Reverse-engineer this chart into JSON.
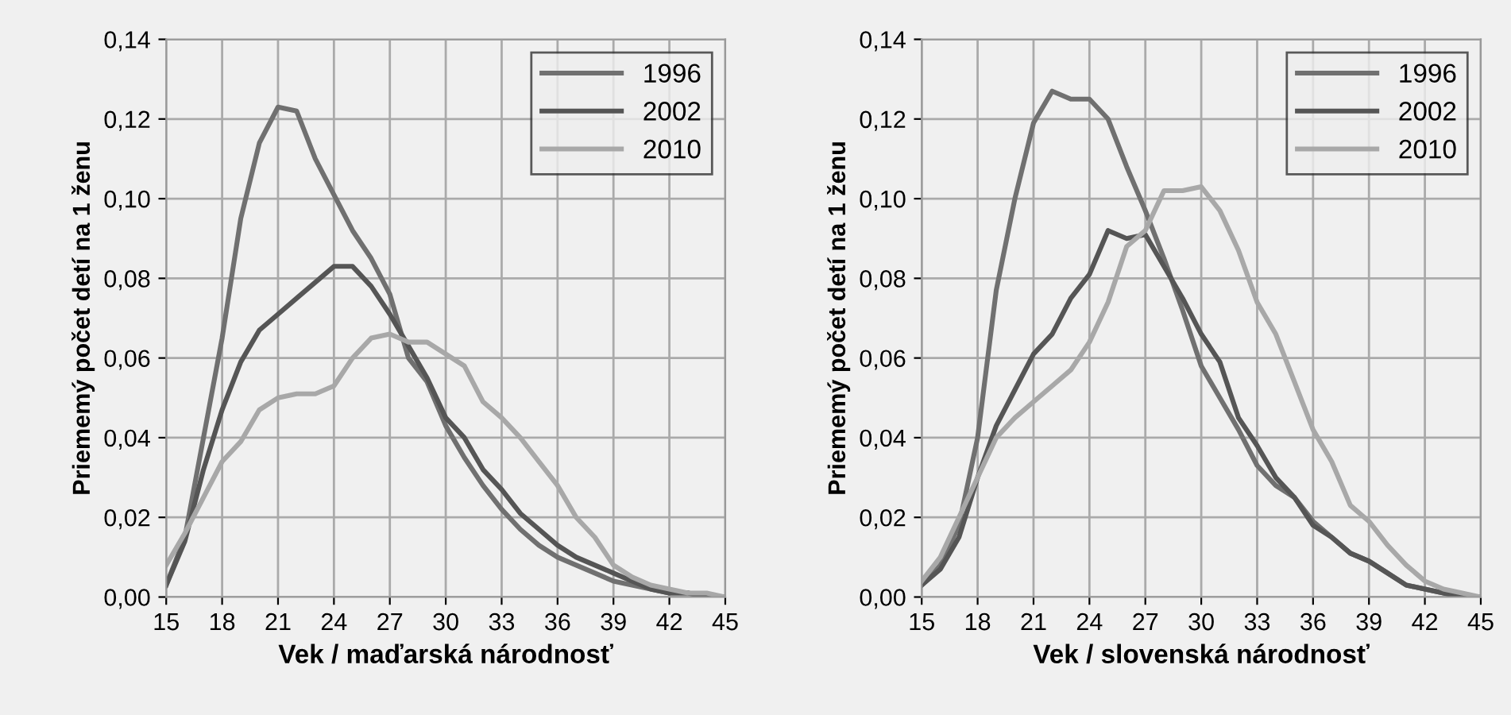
{
  "chart_data": [
    {
      "type": "line",
      "xlabel": "Vek / maďarská národnosť",
      "ylabel": "Priememý počet detí na 1 ženu",
      "x": [
        15,
        16,
        17,
        18,
        19,
        20,
        21,
        22,
        23,
        24,
        25,
        26,
        27,
        28,
        29,
        30,
        31,
        32,
        33,
        34,
        35,
        36,
        37,
        38,
        39,
        40,
        41,
        42,
        43,
        44,
        45
      ],
      "series": [
        {
          "name": "1996",
          "color": "#707070",
          "values": [
            0.003,
            0.015,
            0.04,
            0.065,
            0.095,
            0.114,
            0.123,
            0.122,
            0.11,
            0.101,
            0.092,
            0.085,
            0.076,
            0.06,
            0.054,
            0.043,
            0.035,
            0.028,
            0.022,
            0.017,
            0.013,
            0.01,
            0.008,
            0.006,
            0.004,
            0.003,
            0.002,
            0.001,
            0.001,
            0.0,
            0.0
          ]
        },
        {
          "name": "2002",
          "color": "#555555",
          "values": [
            0.003,
            0.014,
            0.032,
            0.047,
            0.059,
            0.067,
            0.071,
            0.075,
            0.079,
            0.083,
            0.083,
            0.078,
            0.071,
            0.063,
            0.055,
            0.045,
            0.04,
            0.032,
            0.027,
            0.021,
            0.017,
            0.013,
            0.01,
            0.008,
            0.006,
            0.004,
            0.002,
            0.001,
            0.001,
            0.0,
            0.0
          ]
        },
        {
          "name": "2010",
          "color": "#a8a8a8",
          "values": [
            0.008,
            0.016,
            0.025,
            0.034,
            0.039,
            0.047,
            0.05,
            0.051,
            0.051,
            0.053,
            0.06,
            0.065,
            0.066,
            0.064,
            0.064,
            0.061,
            0.058,
            0.049,
            0.045,
            0.04,
            0.034,
            0.028,
            0.02,
            0.015,
            0.008,
            0.005,
            0.003,
            0.002,
            0.001,
            0.001,
            0.0
          ]
        }
      ],
      "xlim": [
        15,
        45
      ],
      "xticks": [
        15,
        18,
        21,
        24,
        27,
        30,
        33,
        36,
        39,
        42,
        45
      ],
      "ylim": [
        0,
        0.14
      ],
      "yticks": [
        {
          "value": 0,
          "label": "0,00"
        },
        {
          "value": 0.02,
          "label": "0,02"
        },
        {
          "value": 0.04,
          "label": "0,04"
        },
        {
          "value": 0.06,
          "label": "0,06"
        },
        {
          "value": 0.08,
          "label": "0,08"
        },
        {
          "value": 0.1,
          "label": "0,10"
        },
        {
          "value": 0.12,
          "label": "0,12"
        },
        {
          "value": 0.14,
          "label": "0,14"
        }
      ],
      "grid": true,
      "legend": "top right"
    },
    {
      "type": "line",
      "xlabel": "Vek / slovenská národnosť",
      "ylabel": "Priememý počet detí na 1 ženu",
      "x": [
        15,
        16,
        17,
        18,
        19,
        20,
        21,
        22,
        23,
        24,
        25,
        26,
        27,
        28,
        29,
        30,
        31,
        32,
        33,
        34,
        35,
        36,
        37,
        38,
        39,
        40,
        41,
        42,
        43,
        44,
        45
      ],
      "series": [
        {
          "name": "1996",
          "color": "#707070",
          "values": [
            0.003,
            0.008,
            0.018,
            0.04,
            0.077,
            0.1,
            0.119,
            0.127,
            0.125,
            0.125,
            0.12,
            0.108,
            0.097,
            0.085,
            0.072,
            0.058,
            0.05,
            0.042,
            0.033,
            0.028,
            0.025,
            0.019,
            0.015,
            0.011,
            0.009,
            0.006,
            0.003,
            0.002,
            0.001,
            0.0,
            0.0
          ]
        },
        {
          "name": "2002",
          "color": "#555555",
          "values": [
            0.003,
            0.007,
            0.015,
            0.03,
            0.043,
            0.052,
            0.061,
            0.066,
            0.075,
            0.081,
            0.092,
            0.09,
            0.091,
            0.083,
            0.075,
            0.066,
            0.059,
            0.045,
            0.038,
            0.03,
            0.025,
            0.018,
            0.015,
            0.011,
            0.009,
            0.006,
            0.003,
            0.002,
            0.001,
            0.0,
            0.0
          ]
        },
        {
          "name": "2010",
          "color": "#a8a8a8",
          "values": [
            0.004,
            0.01,
            0.02,
            0.03,
            0.04,
            0.045,
            0.049,
            0.053,
            0.057,
            0.064,
            0.074,
            0.088,
            0.092,
            0.102,
            0.102,
            0.103,
            0.097,
            0.087,
            0.074,
            0.066,
            0.054,
            0.042,
            0.034,
            0.023,
            0.019,
            0.013,
            0.008,
            0.004,
            0.002,
            0.001,
            0.0
          ]
        }
      ],
      "xlim": [
        15,
        45
      ],
      "xticks": [
        15,
        18,
        21,
        24,
        27,
        30,
        33,
        36,
        39,
        42,
        45
      ],
      "ylim": [
        0,
        0.14
      ],
      "yticks": [
        {
          "value": 0,
          "label": "0,00"
        },
        {
          "value": 0.02,
          "label": "0,02"
        },
        {
          "value": 0.04,
          "label": "0,04"
        },
        {
          "value": 0.06,
          "label": "0,06"
        },
        {
          "value": 0.08,
          "label": "0,08"
        },
        {
          "value": 0.1,
          "label": "0,10"
        },
        {
          "value": 0.12,
          "label": "0,12"
        },
        {
          "value": 0.14,
          "label": "0,14"
        }
      ],
      "grid": true,
      "legend": "top right"
    }
  ]
}
